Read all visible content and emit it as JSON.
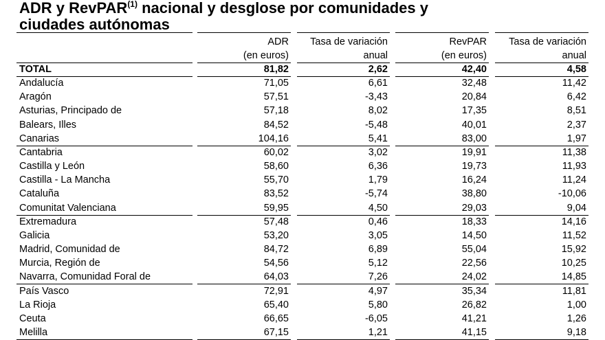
{
  "header": {
    "title_line1": "ADR y RevPAR",
    "title_sup": "(1)",
    "title_line1_rest": " nacional y desglose por comunidades y",
    "title_line2": "ciudades autónomas"
  },
  "table": {
    "columns": [
      [
        "ADR",
        "(en euros)"
      ],
      [
        "Tasa de variación",
        "anual"
      ],
      [
        "RevPAR",
        "(en euros)"
      ],
      [
        "Tasa de variación",
        "anual"
      ]
    ],
    "rows": [
      [
        "TOTAL",
        "81,82",
        "2,62",
        "42,40",
        "4,58"
      ],
      [
        "Andalucía",
        "71,05",
        "6,61",
        "32,48",
        "11,42"
      ],
      [
        "Aragón",
        "57,51",
        "-3,43",
        "20,84",
        "6,42"
      ],
      [
        "Asturias, Principado de",
        "57,18",
        "8,02",
        "17,35",
        "8,51"
      ],
      [
        "Balears, Illes",
        "84,52",
        "-5,48",
        "40,01",
        "2,37"
      ],
      [
        "Canarias",
        "104,16",
        "5,41",
        "83,00",
        "1,97"
      ],
      [
        "Cantabria",
        "60,02",
        "3,02",
        "19,91",
        "11,38"
      ],
      [
        "Castilla y León",
        "58,60",
        "6,36",
        "19,73",
        "11,93"
      ],
      [
        "Castilla - La Mancha",
        "55,70",
        "1,79",
        "16,24",
        "11,24"
      ],
      [
        "Cataluña",
        "83,52",
        "-5,74",
        "38,80",
        "-10,06"
      ],
      [
        "Comunitat Valenciana",
        "59,95",
        "4,50",
        "29,03",
        "9,04"
      ],
      [
        "Extremadura",
        "57,48",
        "0,46",
        "18,33",
        "14,16"
      ],
      [
        "Galicia",
        "53,20",
        "3,05",
        "14,50",
        "11,52"
      ],
      [
        "Madrid, Comunidad de",
        "84,72",
        "6,89",
        "55,04",
        "15,92"
      ],
      [
        "Murcia, Región de",
        "54,56",
        "5,12",
        "22,56",
        "10,25"
      ],
      [
        "Navarra, Comunidad Foral de",
        "64,03",
        "7,26",
        "24,02",
        "14,85"
      ],
      [
        "País Vasco",
        "72,91",
        "4,97",
        "35,34",
        "11,81"
      ],
      [
        "La Rioja",
        "65,40",
        "5,80",
        "26,82",
        "1,00"
      ],
      [
        "Ceuta",
        "66,65",
        "-6,05",
        "41,21",
        "1,26"
      ],
      [
        "Melilla",
        "67,15",
        "1,21",
        "41,15",
        "9,18"
      ]
    ]
  }
}
